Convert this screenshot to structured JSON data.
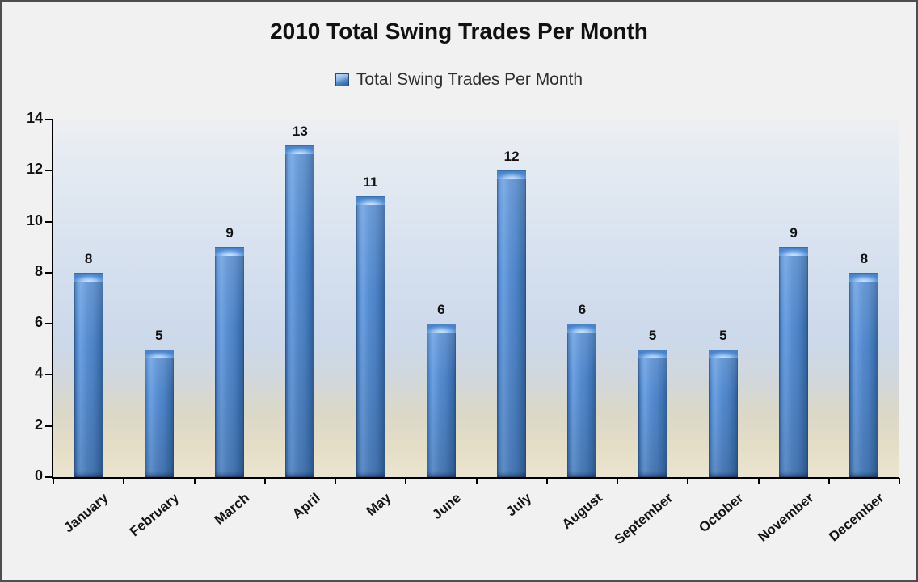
{
  "title": "2010 Total Swing Trades Per Month",
  "legend": {
    "label": "Total Swing Trades Per Month"
  },
  "chart_data": {
    "type": "bar",
    "title": "2010 Total Swing Trades Per Month",
    "series_name": "Total Swing Trades Per Month",
    "categories": [
      "January",
      "February",
      "March",
      "April",
      "May",
      "June",
      "July",
      "August",
      "September",
      "October",
      "November",
      "December"
    ],
    "values": [
      8,
      5,
      9,
      13,
      11,
      6,
      12,
      6,
      5,
      5,
      9,
      8
    ],
    "xlabel": "",
    "ylabel": "",
    "ylim": [
      0,
      14
    ],
    "yticks": [
      0,
      2,
      4,
      6,
      8,
      10,
      12,
      14
    ],
    "grid": false,
    "data_labels": true,
    "legend_position": "top-center",
    "x_label_rotation_deg": -40,
    "colors": {
      "bar_fill": "#4f86c6",
      "bar_edge": "#2a5a92",
      "bar_highlight": "#a3c9f3",
      "plot_bg_top": "#edeff2",
      "plot_bg_middle": "#ccd9ea",
      "plot_bg_bottom": "#ebe4d0",
      "page_bg": "#f1f1f1",
      "frame_border": "#4e4e4e",
      "axis": "#000000",
      "text": "#111111"
    }
  }
}
